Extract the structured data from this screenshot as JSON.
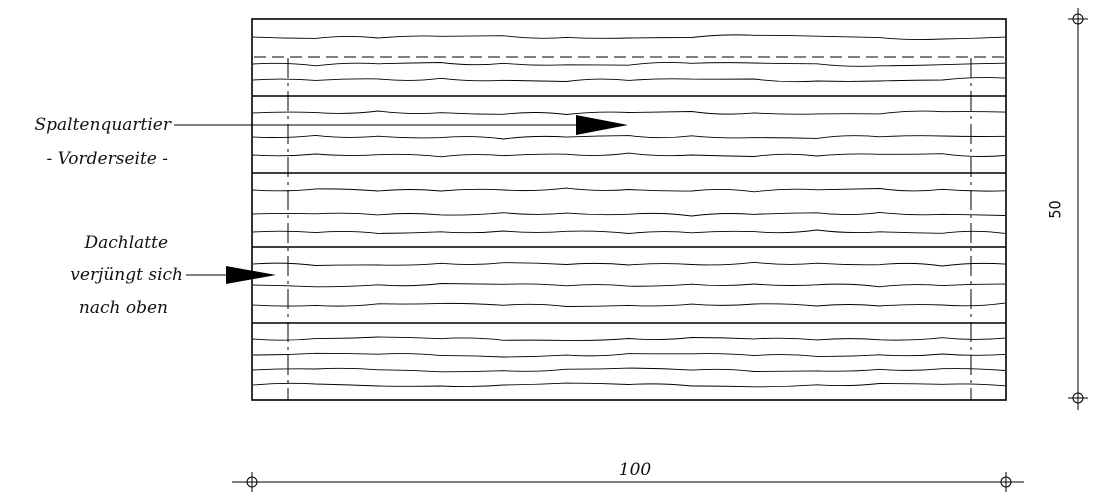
{
  "labels": {
    "spaltenquartier": "Spaltenquartier",
    "vorderseite": "- Vorderseite -",
    "dachlatte_1": "Dachlatte",
    "dachlatte_2": "verjüngt sich",
    "dachlatte_3": "nach oben"
  },
  "dimensions": {
    "width_label": "100",
    "height_label": "50"
  }
}
